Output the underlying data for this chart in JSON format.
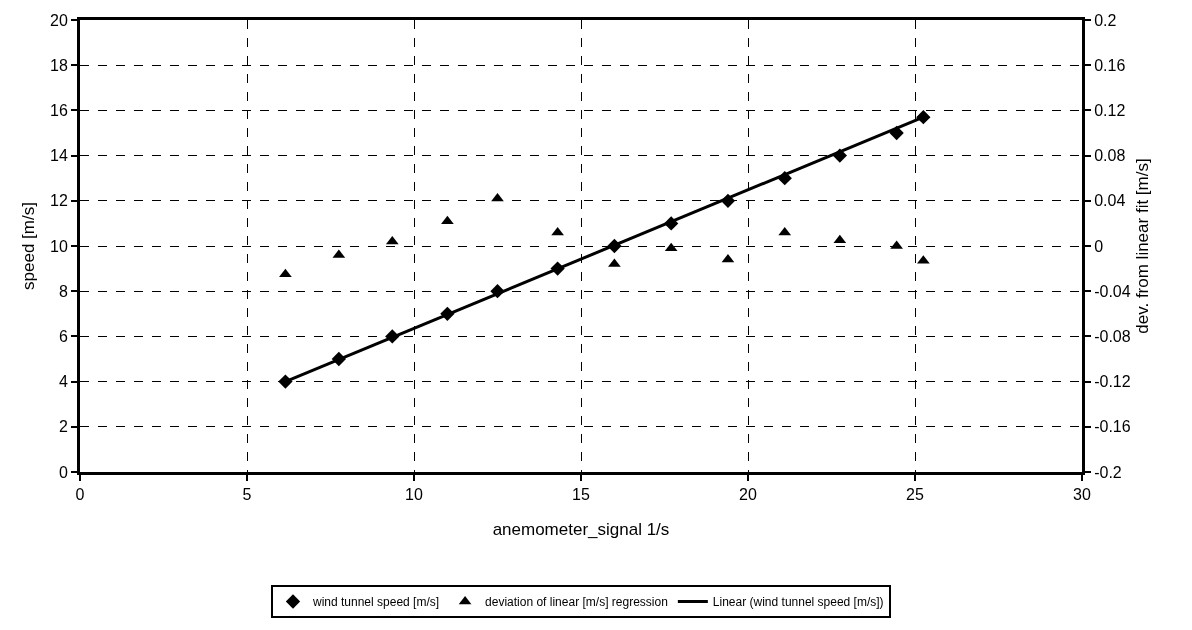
{
  "chart_data": {
    "type": "scatter",
    "xlabel": "anemometer_signal 1/s",
    "ylabel": "speed [m/s]",
    "y2label": "dev. from linear fit [m/s]",
    "x": [
      6.15,
      7.75,
      9.35,
      11.0,
      12.5,
      14.3,
      16.0,
      17.7,
      19.4,
      21.1,
      22.75,
      24.45,
      25.25
    ],
    "xlim": [
      0,
      30
    ],
    "xticks": [
      0,
      5,
      10,
      15,
      20,
      25,
      30
    ],
    "ylim": [
      0,
      20
    ],
    "yticks": [
      0,
      2,
      4,
      6,
      8,
      10,
      12,
      14,
      16,
      18,
      20
    ],
    "y2lim": [
      -0.2,
      0.2
    ],
    "y2ticks": [
      -0.2,
      -0.16,
      -0.12,
      -0.08,
      -0.04,
      0,
      0.04,
      0.08,
      0.12,
      0.16,
      0.2
    ],
    "grid": true,
    "legend": "bottom",
    "series": [
      {
        "name": "wind tunnel speed [m/s]",
        "color": "#000000",
        "marker": "diamond",
        "values": [
          4,
          5,
          6,
          7,
          8,
          9,
          10,
          11,
          12,
          13,
          14,
          15,
          15.7
        ]
      },
      {
        "name": "deviation of linear [m/s] regression",
        "color": "#000000",
        "marker": "triangle",
        "axis": "y2",
        "values": [
          -0.025,
          -0.008,
          0.004,
          0.022,
          0.042,
          0.012,
          -0.016,
          -0.002,
          -0.012,
          0.012,
          0.005,
          0.0,
          -0.013
        ]
      },
      {
        "name": "Linear (wind tunnel speed [m/s])",
        "type": "line",
        "color": "#000000",
        "marker": "none",
        "x": [
          6.15,
          25.25
        ],
        "values": [
          4,
          15.7
        ]
      }
    ]
  }
}
